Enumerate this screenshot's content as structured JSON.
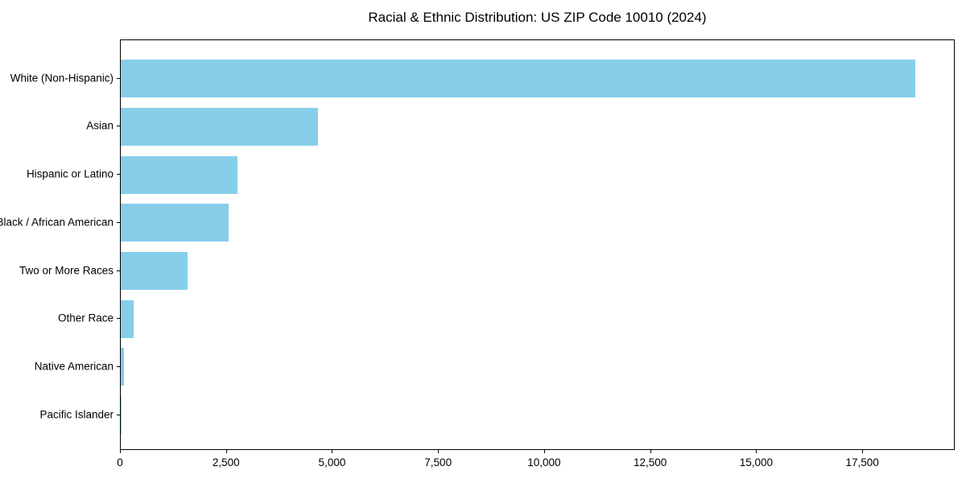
{
  "chart_data": {
    "type": "bar",
    "orientation": "horizontal",
    "title": "Racial & Ethnic Distribution: US ZIP Code 10010 (2024)",
    "categories": [
      "White (Non-Hispanic)",
      "Asian",
      "Hispanic or Latino",
      "Black / African American",
      "Two or More Races",
      "Other Race",
      "Native American",
      "Pacific Islander"
    ],
    "values": [
      18740,
      4650,
      2760,
      2540,
      1580,
      300,
      80,
      10
    ],
    "xlabel": "",
    "ylabel": "",
    "xlim": [
      0,
      19680
    ],
    "x_ticks": [
      0,
      2500,
      5000,
      7500,
      10000,
      12500,
      15000,
      17500
    ],
    "x_tick_labels": [
      "0",
      "2,500",
      "5,000",
      "7,500",
      "10,000",
      "12,500",
      "15,000",
      "17,500"
    ],
    "bar_color": "#87CEEB",
    "text_color": "#000000",
    "grid": false,
    "legend_position": "none"
  }
}
